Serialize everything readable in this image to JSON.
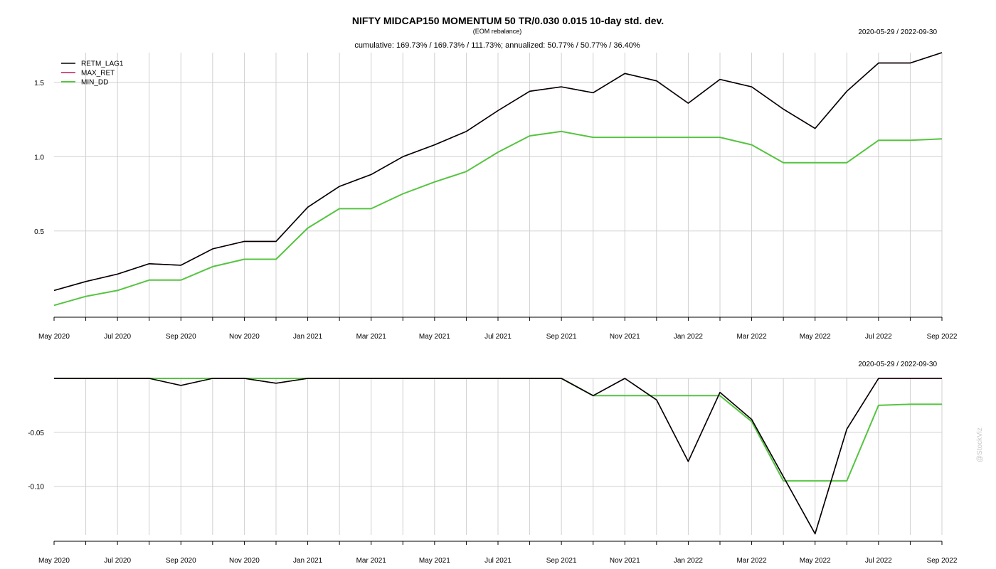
{
  "title": "NIFTY MIDCAP150 MOMENTUM 50 TR/0.030 0.015 10-day std. dev.",
  "subtitle": "(EOM rebalance)",
  "stats": "cumulative: 169.73% / 169.73% / 111.73%; annualized: 50.77% / 50.77% / 36.40%",
  "date_range": "2020-05-29 / 2022-09-30",
  "watermark": "@StockViz",
  "colors": {
    "RETM_LAG1": "#000000",
    "MAX_RET": "#c2185b",
    "MIN_DD": "#55c440"
  },
  "chart_data": [
    {
      "type": "line",
      "panel": "cumulative",
      "legend": [
        "RETM_LAG1",
        "MAX_RET",
        "MIN_DD"
      ],
      "legend_position": "top-left",
      "grid": true,
      "x": [
        "2020-05",
        "2020-06",
        "2020-07",
        "2020-08",
        "2020-09",
        "2020-10",
        "2020-11",
        "2020-12",
        "2021-01",
        "2021-02",
        "2021-03",
        "2021-04",
        "2021-05",
        "2021-06",
        "2021-07",
        "2021-08",
        "2021-09",
        "2021-10",
        "2021-11",
        "2021-12",
        "2022-01",
        "2022-02",
        "2022-03",
        "2022-04",
        "2022-05",
        "2022-06",
        "2022-07",
        "2022-08",
        "2022-09"
      ],
      "x_ticks": [
        "May 2020",
        "Jul 2020",
        "Sep 2020",
        "Nov 2020",
        "Jan 2021",
        "Mar 2021",
        "May 2021",
        "Jul 2021",
        "Sep 2021",
        "Nov 2021",
        "Jan 2022",
        "Mar 2022",
        "May 2022",
        "Jul 2022",
        "Sep 2022"
      ],
      "y_ticks": [
        "0.5",
        "1.0",
        "1.5"
      ],
      "ylim": [
        -0.08,
        1.7
      ],
      "series": [
        {
          "name": "RETM_LAG1",
          "values": [
            0.1,
            0.16,
            0.21,
            0.28,
            0.27,
            0.38,
            0.43,
            0.43,
            0.66,
            0.8,
            0.88,
            1.0,
            1.08,
            1.17,
            1.31,
            1.44,
            1.47,
            1.43,
            1.56,
            1.51,
            1.36,
            1.52,
            1.47,
            1.32,
            1.19,
            1.44,
            1.63,
            1.63,
            1.7
          ]
        },
        {
          "name": "MAX_RET",
          "values": [
            0.1,
            0.16,
            0.21,
            0.28,
            0.27,
            0.38,
            0.43,
            0.43,
            0.66,
            0.8,
            0.88,
            1.0,
            1.08,
            1.17,
            1.31,
            1.44,
            1.47,
            1.43,
            1.56,
            1.51,
            1.36,
            1.52,
            1.47,
            1.32,
            1.19,
            1.44,
            1.63,
            1.63,
            1.7
          ]
        },
        {
          "name": "MIN_DD",
          "values": [
            0.0,
            0.06,
            0.1,
            0.17,
            0.17,
            0.26,
            0.31,
            0.31,
            0.52,
            0.65,
            0.65,
            0.75,
            0.83,
            0.9,
            1.03,
            1.14,
            1.17,
            1.13,
            1.13,
            1.13,
            1.13,
            1.13,
            1.08,
            0.96,
            0.96,
            0.96,
            1.11,
            1.11,
            1.12
          ]
        }
      ]
    },
    {
      "type": "line",
      "panel": "drawdown",
      "grid": true,
      "x_ticks": [
        "May 2020",
        "Jul 2020",
        "Sep 2020",
        "Nov 2020",
        "Jan 2021",
        "Mar 2021",
        "May 2021",
        "Jul 2021",
        "Sep 2021",
        "Nov 2021",
        "Jan 2022",
        "Mar 2022",
        "May 2022",
        "Jul 2022",
        "Sep 2022"
      ],
      "y_ticks": [
        "-0.05",
        "-0.10"
      ],
      "ylim": [
        -0.145,
        0.0
      ],
      "series": [
        {
          "name": "RETM_LAG1",
          "values": [
            0,
            0,
            0,
            0,
            -0.0065,
            0,
            0,
            -0.0045,
            0,
            0,
            0,
            0,
            0,
            0,
            0,
            0,
            0,
            -0.016,
            0,
            -0.02,
            -0.077,
            -0.013,
            -0.038,
            -0.091,
            -0.144,
            -0.047,
            0,
            0,
            0
          ]
        },
        {
          "name": "MAX_RET",
          "values": [
            0,
            0,
            0,
            0,
            -0.0065,
            0,
            0,
            -0.0045,
            0,
            0,
            0,
            0,
            0,
            0,
            0,
            0,
            0,
            -0.016,
            0,
            -0.02,
            -0.077,
            -0.013,
            -0.038,
            -0.091,
            -0.144,
            -0.047,
            0,
            0,
            0
          ]
        },
        {
          "name": "MIN_DD",
          "values": [
            0,
            0,
            0,
            0,
            0,
            0,
            0,
            0,
            0,
            0,
            0,
            0,
            0,
            0,
            0,
            0,
            0,
            -0.016,
            -0.016,
            -0.016,
            -0.016,
            -0.016,
            -0.04,
            -0.095,
            -0.095,
            -0.095,
            -0.025,
            -0.024,
            -0.024
          ]
        }
      ]
    }
  ]
}
